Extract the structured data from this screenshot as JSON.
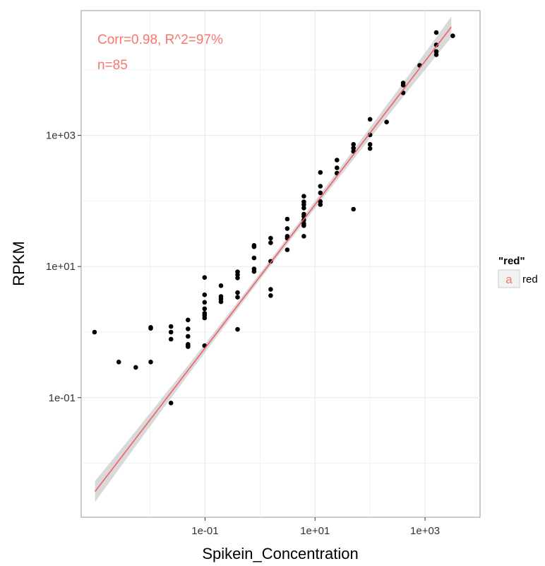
{
  "chart_data": {
    "type": "scatter",
    "xlabel": "Spikein_Concentration",
    "ylabel": "RPKM",
    "x_scale": "log10",
    "y_scale": "log10",
    "xlim": [
      0.00056,
      10000
    ],
    "ylim": [
      0.0015,
      80000
    ],
    "x_ticks": [
      0.1,
      10,
      1000
    ],
    "x_tick_labels": [
      "1e-01",
      "1e+01",
      "1e+03"
    ],
    "y_ticks": [
      0.1,
      10,
      1000
    ],
    "y_tick_labels": [
      "1e-01",
      "1e+01",
      "1e+03"
    ],
    "grid": true,
    "annotations": [
      "Corr=0.98, R^2=97%",
      "n=85"
    ],
    "legend": {
      "title": "\"red\"",
      "key": "a",
      "label": "red",
      "position": "right"
    },
    "colors": {
      "fit_line": "#f0606a",
      "confidence_band": "#bfbfbf",
      "points": "#000000",
      "annotation": "#f8766d",
      "grid": "#ebebeb"
    },
    "fit": {
      "x": [
        0.001,
        3000
      ],
      "y": [
        0.0037,
        45000
      ],
      "band_halfwidth_log10_ends": 0.16,
      "band_halfwidth_log10_center": 0.05
    },
    "points": [
      [
        0.00098,
        1.0
      ],
      [
        0.0027,
        0.35
      ],
      [
        0.0055,
        0.29
      ],
      [
        0.0103,
        0.35
      ],
      [
        0.0103,
        1.14
      ],
      [
        0.0103,
        1.18
      ],
      [
        0.024,
        0.083
      ],
      [
        0.024,
        0.78
      ],
      [
        0.024,
        1.0
      ],
      [
        0.024,
        1.22
      ],
      [
        0.049,
        0.6
      ],
      [
        0.049,
        0.62
      ],
      [
        0.049,
        0.65
      ],
      [
        0.049,
        0.86
      ],
      [
        0.049,
        1.12
      ],
      [
        0.049,
        1.53
      ],
      [
        0.098,
        0.62
      ],
      [
        0.098,
        1.64
      ],
      [
        0.098,
        1.8
      ],
      [
        0.098,
        1.94
      ],
      [
        0.098,
        2.27
      ],
      [
        0.098,
        2.85
      ],
      [
        0.098,
        3.7
      ],
      [
        0.098,
        6.8
      ],
      [
        0.195,
        2.9
      ],
      [
        0.195,
        3.2
      ],
      [
        0.195,
        3.5
      ],
      [
        0.195,
        5.1
      ],
      [
        0.39,
        1.1
      ],
      [
        0.39,
        3.4
      ],
      [
        0.39,
        4.0
      ],
      [
        0.39,
        6.7
      ],
      [
        0.39,
        7.5
      ],
      [
        0.39,
        8.3
      ],
      [
        0.78,
        8.4
      ],
      [
        0.78,
        9.2
      ],
      [
        0.78,
        13.5
      ],
      [
        0.78,
        20.0
      ],
      [
        0.78,
        21.0
      ],
      [
        1.56,
        3.6
      ],
      [
        1.56,
        4.5
      ],
      [
        1.56,
        12.0
      ],
      [
        1.56,
        23.0
      ],
      [
        1.56,
        27.0
      ],
      [
        3.125,
        18.0
      ],
      [
        3.125,
        27.0
      ],
      [
        3.125,
        29.0
      ],
      [
        3.125,
        38.0
      ],
      [
        3.125,
        53.0
      ],
      [
        6.25,
        29.0
      ],
      [
        6.25,
        42.0
      ],
      [
        6.25,
        45.0
      ],
      [
        6.25,
        51.0
      ],
      [
        6.25,
        58.0
      ],
      [
        6.25,
        63.0
      ],
      [
        6.25,
        78.0
      ],
      [
        6.25,
        88.0
      ],
      [
        6.25,
        97.0
      ],
      [
        6.25,
        118.0
      ],
      [
        12.5,
        88.0
      ],
      [
        12.5,
        98.0
      ],
      [
        12.5,
        133.0
      ],
      [
        12.5,
        168.0
      ],
      [
        12.5,
        272.0
      ],
      [
        25.0,
        265.0
      ],
      [
        25.0,
        320.0
      ],
      [
        25.0,
        420.0
      ],
      [
        50.0,
        75.0
      ],
      [
        50.0,
        570.0
      ],
      [
        50.0,
        640.0
      ],
      [
        50.0,
        730.0
      ],
      [
        100.0,
        630.0
      ],
      [
        100.0,
        730.0
      ],
      [
        100.0,
        1020.0
      ],
      [
        100.0,
        1760.0
      ],
      [
        200.0,
        1600.0
      ],
      [
        400.0,
        4450.0
      ],
      [
        400.0,
        5850.0
      ],
      [
        400.0,
        6300.0
      ],
      [
        800.0,
        11700.0
      ],
      [
        1600.0,
        17000.0
      ],
      [
        1600.0,
        19000.0
      ],
      [
        1600.0,
        24000.0
      ],
      [
        1600.0,
        37000.0
      ],
      [
        3200.0,
        33000.0
      ]
    ]
  }
}
